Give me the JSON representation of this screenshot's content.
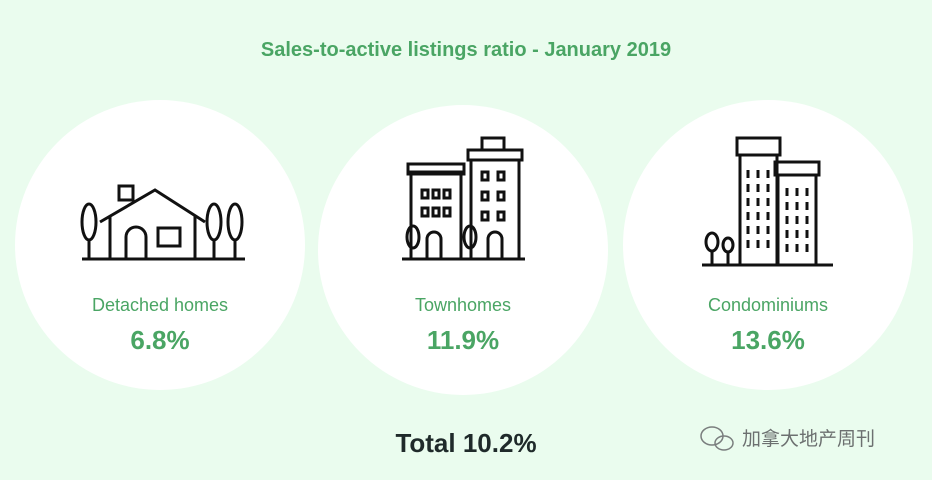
{
  "title": "Sales-to-active listings ratio - January 2019",
  "items": [
    {
      "label": "Detached homes",
      "value": "6.8%"
    },
    {
      "label": "Townhomes",
      "value": "11.9%"
    },
    {
      "label": "Condominiums",
      "value": "13.6%"
    }
  ],
  "total": "Total 10.2%",
  "watermark": "加拿大地产周刊"
}
